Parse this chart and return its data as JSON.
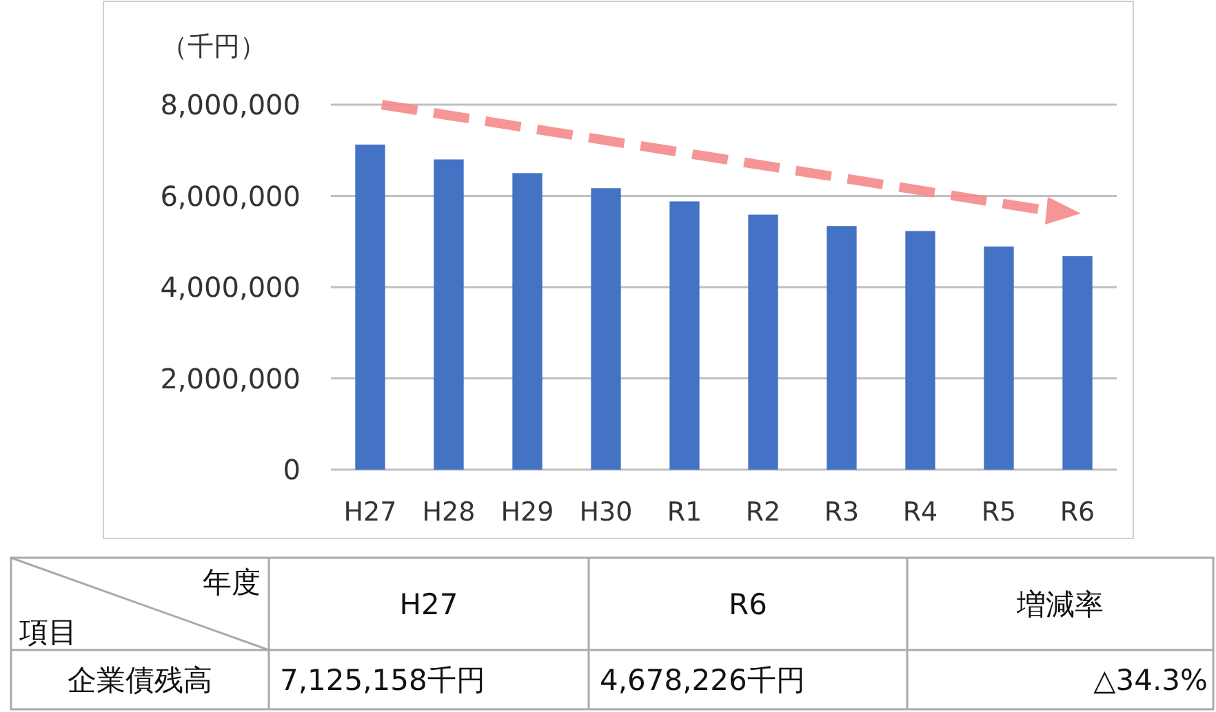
{
  "chart_data": {
    "type": "bar",
    "ylabel": "（千円）",
    "categories": [
      "H27",
      "H28",
      "H29",
      "H30",
      "R1",
      "R2",
      "R3",
      "R4",
      "R5",
      "R6"
    ],
    "values": [
      7125158,
      6800000,
      6500000,
      6170000,
      5880000,
      5590000,
      5340000,
      5230000,
      4890000,
      4678226
    ],
    "color": "#4472c4",
    "ylim": [
      0,
      8000000
    ],
    "yticks": [
      {
        "value": 0,
        "label": "0"
      },
      {
        "value": 2000000,
        "label": "2,000,000"
      },
      {
        "value": 4000000,
        "label": "4,000,000"
      },
      {
        "value": 6000000,
        "label": "6,000,000"
      },
      {
        "value": 8000000,
        "label": "8,000,000"
      }
    ],
    "grid": "y",
    "annotations": [
      "年度",
      "項目",
      "H27",
      "R6",
      "増減率",
      "企業債残高",
      "7,125,158千円",
      "4,678,226千円",
      "△34.3%"
    ]
  }
}
